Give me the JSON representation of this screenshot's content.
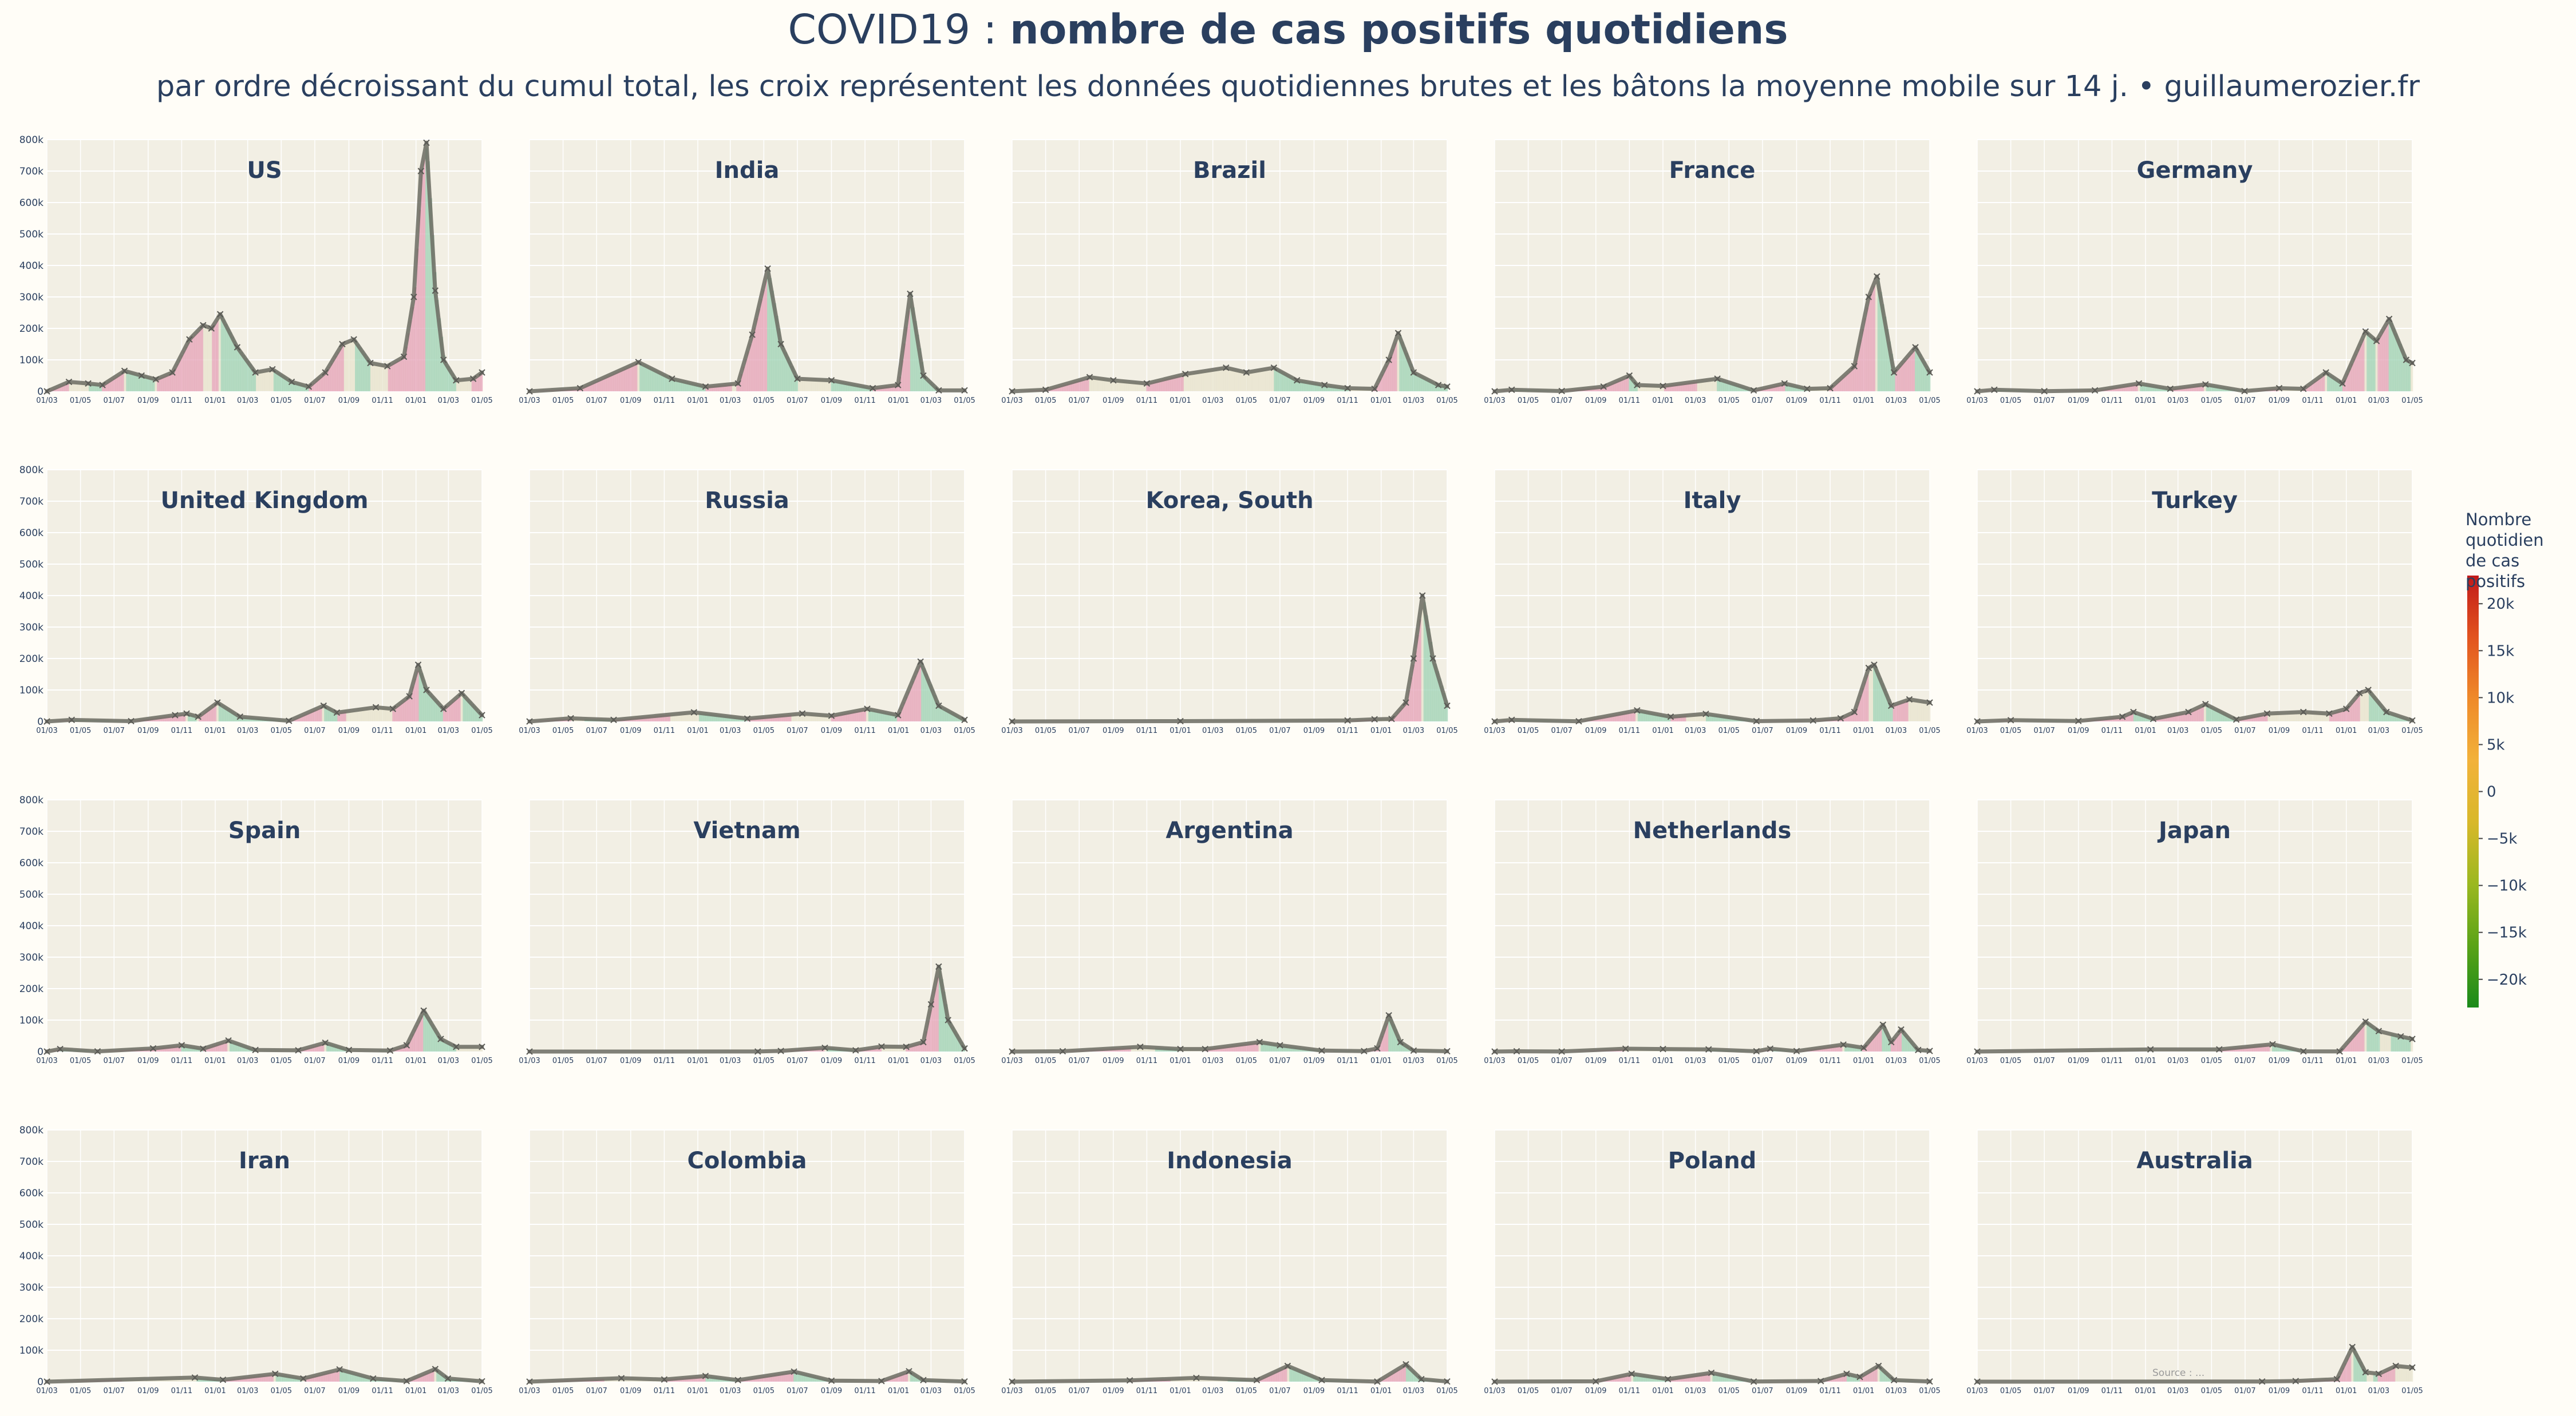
{
  "title": {
    "prefix": "COVID19 : ",
    "bold": "nombre de cas positifs quotidiens"
  },
  "subtitle": "par ordre décroissant du cumul total, les croix représentent les données quotidiennes brutes et les bâtons la moyenne mobile sur 14 j.  •  guillaumerozier.fr",
  "colorbar": {
    "title_lines": [
      "Nombre",
      "quotidien",
      "de cas positifs"
    ],
    "ticks": [
      "20k",
      "15k",
      "10k",
      "5k",
      "0",
      "−5k",
      "−10k",
      "−15k",
      "−20k"
    ],
    "tick_values": [
      20000,
      15000,
      10000,
      5000,
      0,
      -5000,
      -10000,
      -15000,
      -20000
    ],
    "range": [
      -23000,
      23000
    ],
    "colors": [
      "#1a8a1a",
      "#5aa318",
      "#9bb820",
      "#d8b82a",
      "#f2b23a",
      "#ef8a2a",
      "#e2531f",
      "#c11a1a"
    ]
  },
  "source": "Source : ...",
  "colors": {
    "panel_bg": "#f2efe4",
    "grid": "#ffffff",
    "line": "#6b6b62",
    "rise": "#e6a3b8",
    "fall": "#9fd3b5",
    "flat": "#e8e4cf",
    "marker": "#5a5a55"
  },
  "chart_data": {
    "type": "line",
    "ylim": [
      0,
      800000
    ],
    "y_ticks": [
      "0",
      "100k",
      "200k",
      "300k",
      "400k",
      "500k",
      "600k",
      "700k",
      "800k"
    ],
    "x_ticks": [
      "01/03",
      "01/05",
      "01/07",
      "01/09",
      "01/11",
      "01/01",
      "01/03",
      "01/05",
      "01/07",
      "01/09",
      "01/11",
      "01/01",
      "01/03",
      "01/05"
    ],
    "x_dates": [
      "2020-03-01",
      "2020-05-01",
      "2020-07-01",
      "2020-09-01",
      "2020-11-01",
      "2021-01-01",
      "2021-03-01",
      "2021-05-01",
      "2021-07-01",
      "2021-09-01",
      "2021-11-01",
      "2022-01-01",
      "2022-03-01",
      "2022-05-01"
    ],
    "panels": [
      {
        "country": "US",
        "dates": [
          "2020-03-01",
          "2020-04-10",
          "2020-05-15",
          "2020-06-10",
          "2020-07-20",
          "2020-08-20",
          "2020-09-15",
          "2020-10-15",
          "2020-11-15",
          "2020-12-10",
          "2020-12-25",
          "2021-01-10",
          "2021-02-10",
          "2021-03-15",
          "2021-04-15",
          "2021-05-20",
          "2021-06-20",
          "2021-07-20",
          "2021-08-20",
          "2021-09-10",
          "2021-10-10",
          "2021-11-10",
          "2021-12-10",
          "2021-12-28",
          "2022-01-10",
          "2022-01-20",
          "2022-02-05",
          "2022-02-20",
          "2022-03-15",
          "2022-04-15",
          "2022-05-01"
        ],
        "values": [
          0,
          30000,
          25000,
          20000,
          65000,
          50000,
          38000,
          60000,
          165000,
          210000,
          200000,
          245000,
          140000,
          60000,
          70000,
          30000,
          15000,
          60000,
          150000,
          165000,
          90000,
          80000,
          110000,
          300000,
          700000,
          790000,
          320000,
          100000,
          35000,
          40000,
          60000
        ]
      },
      {
        "country": "India",
        "dates": [
          "2020-03-01",
          "2020-06-01",
          "2020-09-15",
          "2020-11-15",
          "2021-01-15",
          "2021-03-15",
          "2021-04-10",
          "2021-05-08",
          "2021-06-01",
          "2021-07-01",
          "2021-09-01",
          "2021-11-15",
          "2021-12-31",
          "2022-01-22",
          "2022-02-15",
          "2022-03-15",
          "2022-05-01"
        ],
        "values": [
          0,
          10000,
          93000,
          40000,
          15000,
          25000,
          180000,
          390000,
          150000,
          40000,
          35000,
          10000,
          20000,
          310000,
          50000,
          3000,
          3000
        ]
      },
      {
        "country": "Brazil",
        "dates": [
          "2020-03-01",
          "2020-05-01",
          "2020-07-20",
          "2020-09-01",
          "2020-11-01",
          "2021-01-10",
          "2021-03-25",
          "2021-05-01",
          "2021-06-20",
          "2021-08-01",
          "2021-09-20",
          "2021-11-01",
          "2021-12-20",
          "2022-01-15",
          "2022-02-01",
          "2022-03-01",
          "2022-04-15",
          "2022-05-01"
        ],
        "values": [
          0,
          5000,
          45000,
          35000,
          25000,
          55000,
          75000,
          60000,
          75000,
          35000,
          20000,
          10000,
          8000,
          100000,
          185000,
          60000,
          20000,
          15000
        ]
      },
      {
        "country": "France",
        "dates": [
          "2020-03-01",
          "2020-04-01",
          "2020-07-01",
          "2020-09-15",
          "2020-11-01",
          "2020-11-15",
          "2021-01-01",
          "2021-04-10",
          "2021-06-15",
          "2021-08-10",
          "2021-09-20",
          "2021-11-01",
          "2021-12-15",
          "2022-01-10",
          "2022-01-25",
          "2022-02-25",
          "2022-04-05",
          "2022-05-01"
        ],
        "values": [
          0,
          5000,
          1000,
          15000,
          50000,
          20000,
          17000,
          40000,
          3000,
          25000,
          8000,
          10000,
          80000,
          300000,
          365000,
          60000,
          140000,
          60000
        ]
      },
      {
        "country": "Germany",
        "dates": [
          "2020-03-01",
          "2020-04-01",
          "2020-07-01",
          "2020-10-01",
          "2020-12-20",
          "2021-02-15",
          "2021-04-20",
          "2021-06-30",
          "2021-09-01",
          "2021-10-15",
          "2021-11-25",
          "2021-12-25",
          "2022-02-05",
          "2022-02-25",
          "2022-03-20",
          "2022-04-20",
          "2022-05-01"
        ],
        "values": [
          0,
          5000,
          500,
          3000,
          25000,
          8000,
          22000,
          800,
          10000,
          8000,
          60000,
          25000,
          190000,
          160000,
          230000,
          100000,
          90000
        ]
      },
      {
        "country": "United Kingdom",
        "dates": [
          "2020-03-01",
          "2020-04-15",
          "2020-08-01",
          "2020-10-20",
          "2020-11-10",
          "2020-12-01",
          "2021-01-05",
          "2021-02-15",
          "2021-05-15",
          "2021-07-17",
          "2021-08-10",
          "2021-10-20",
          "2021-11-20",
          "2021-12-20",
          "2022-01-05",
          "2022-01-20",
          "2022-02-20",
          "2022-03-25",
          "2022-05-01"
        ],
        "values": [
          0,
          5000,
          1000,
          20000,
          25000,
          15000,
          60000,
          15000,
          2000,
          50000,
          28000,
          45000,
          40000,
          80000,
          180000,
          100000,
          40000,
          90000,
          20000
        ]
      },
      {
        "country": "Russia",
        "dates": [
          "2020-03-01",
          "2020-05-15",
          "2020-08-01",
          "2020-12-25",
          "2021-04-01",
          "2021-07-10",
          "2021-09-01",
          "2021-11-05",
          "2021-12-31",
          "2022-02-10",
          "2022-03-15",
          "2022-05-01"
        ],
        "values": [
          0,
          10000,
          5000,
          29000,
          9000,
          25000,
          18000,
          40000,
          20000,
          190000,
          50000,
          5000
        ]
      },
      {
        "country": "Korea, South",
        "dates": [
          "2020-03-01",
          "2021-01-01",
          "2021-11-01",
          "2021-12-20",
          "2022-01-20",
          "2022-02-15",
          "2022-03-01",
          "2022-03-17",
          "2022-04-05",
          "2022-05-01"
        ],
        "values": [
          0,
          1000,
          3000,
          7000,
          8000,
          60000,
          200000,
          400000,
          200000,
          50000
        ]
      },
      {
        "country": "Italy",
        "dates": [
          "2020-03-01",
          "2020-04-01",
          "2020-08-01",
          "2020-11-15",
          "2021-01-15",
          "2021-03-20",
          "2021-06-20",
          "2021-10-01",
          "2021-11-20",
          "2021-12-15",
          "2022-01-10",
          "2022-01-20",
          "2022-02-20",
          "2022-03-25",
          "2022-05-01"
        ],
        "values": [
          0,
          5000,
          500,
          35000,
          15000,
          24000,
          1000,
          3000,
          10000,
          30000,
          170000,
          180000,
          50000,
          70000,
          60000
        ]
      },
      {
        "country": "Turkey",
        "dates": [
          "2020-03-01",
          "2020-05-01",
          "2020-09-01",
          "2020-11-20",
          "2020-12-10",
          "2021-01-15",
          "2021-03-20",
          "2021-04-20",
          "2021-06-15",
          "2021-08-10",
          "2021-10-15",
          "2021-12-01",
          "2022-01-01",
          "2022-01-25",
          "2022-02-10",
          "2022-03-15",
          "2022-05-01"
        ],
        "values": [
          0,
          4000,
          1500,
          15000,
          30000,
          8000,
          30000,
          55000,
          6000,
          25000,
          30000,
          25000,
          40000,
          90000,
          100000,
          30000,
          3000
        ]
      },
      {
        "country": "Spain",
        "dates": [
          "2020-03-01",
          "2020-03-25",
          "2020-06-01",
          "2020-09-10",
          "2020-11-01",
          "2020-12-10",
          "2021-01-25",
          "2021-03-15",
          "2021-06-01",
          "2021-07-20",
          "2021-09-01",
          "2021-11-15",
          "2021-12-15",
          "2022-01-15",
          "2022-02-15",
          "2022-03-15",
          "2022-05-01"
        ],
        "values": [
          0,
          8000,
          500,
          10000,
          20000,
          9000,
          35000,
          5000,
          4000,
          28000,
          5000,
          3000,
          20000,
          130000,
          40000,
          15000,
          15000
        ]
      },
      {
        "country": "Vietnam",
        "dates": [
          "2020-03-01",
          "2021-04-20",
          "2021-06-01",
          "2021-08-20",
          "2021-10-15",
          "2021-12-01",
          "2022-01-15",
          "2022-02-15",
          "2022-03-01",
          "2022-03-15",
          "2022-04-01",
          "2022-05-01"
        ],
        "values": [
          0,
          100,
          2000,
          12000,
          4000,
          16000,
          15000,
          30000,
          150000,
          270000,
          100000,
          10000
        ]
      },
      {
        "country": "Argentina",
        "dates": [
          "2020-03-01",
          "2020-06-01",
          "2020-10-20",
          "2021-01-01",
          "2021-02-15",
          "2021-05-25",
          "2021-07-01",
          "2021-09-15",
          "2021-12-01",
          "2021-12-25",
          "2022-01-15",
          "2022-02-05",
          "2022-03-01",
          "2022-05-01"
        ],
        "values": [
          0,
          1000,
          15000,
          8000,
          8000,
          30000,
          20000,
          3000,
          1500,
          10000,
          115000,
          30000,
          3000,
          1000
        ]
      },
      {
        "country": "Netherlands",
        "dates": [
          "2020-03-01",
          "2020-04-10",
          "2020-07-01",
          "2020-10-25",
          "2021-01-01",
          "2021-03-25",
          "2021-06-20",
          "2021-07-15",
          "2021-09-01",
          "2021-11-25",
          "2022-01-01",
          "2022-02-05",
          "2022-02-20",
          "2022-03-10",
          "2022-04-10",
          "2022-05-01"
        ],
        "values": [
          0,
          1000,
          100,
          9000,
          8000,
          7000,
          1000,
          9000,
          1500,
          22000,
          12000,
          85000,
          30000,
          70000,
          5000,
          2000
        ]
      },
      {
        "country": "Japan",
        "dates": [
          "2020-03-01",
          "2021-01-10",
          "2021-05-15",
          "2021-08-20",
          "2021-10-15",
          "2021-12-20",
          "2022-02-05",
          "2022-03-01",
          "2022-04-10",
          "2022-05-01"
        ],
        "values": [
          0,
          7000,
          7000,
          23000,
          800,
          300,
          95000,
          65000,
          48000,
          40000
        ]
      },
      {
        "country": "Iran",
        "dates": [
          "2020-03-01",
          "2020-11-25",
          "2021-01-15",
          "2021-04-20",
          "2021-06-10",
          "2021-08-15",
          "2021-10-15",
          "2021-12-15",
          "2022-02-05",
          "2022-02-28",
          "2022-05-01"
        ],
        "values": [
          0,
          13000,
          6000,
          25000,
          10000,
          39000,
          10000,
          2000,
          40000,
          10000,
          1000
        ]
      },
      {
        "country": "Colombia",
        "dates": [
          "2020-03-01",
          "2020-08-15",
          "2020-11-01",
          "2021-01-15",
          "2021-03-15",
          "2021-06-25",
          "2021-09-01",
          "2021-12-01",
          "2022-01-20",
          "2022-02-15",
          "2022-05-01"
        ],
        "values": [
          0,
          11000,
          7000,
          18000,
          5000,
          32000,
          3000,
          2000,
          33000,
          5000,
          500
        ]
      },
      {
        "country": "Indonesia",
        "dates": [
          "2020-03-01",
          "2020-10-01",
          "2021-01-30",
          "2021-05-20",
          "2021-07-15",
          "2021-09-15",
          "2021-12-25",
          "2022-02-15",
          "2022-03-15",
          "2022-05-01"
        ],
        "values": [
          0,
          4000,
          12000,
          5000,
          50000,
          5000,
          200,
          55000,
          8000,
          500
        ]
      },
      {
        "country": "Poland",
        "dates": [
          "2020-03-01",
          "2020-09-01",
          "2020-11-05",
          "2021-01-10",
          "2021-03-30",
          "2021-06-15",
          "2021-10-15",
          "2021-12-01",
          "2021-12-25",
          "2022-01-28",
          "2022-02-25",
          "2022-05-01"
        ],
        "values": [
          0,
          1000,
          25000,
          8000,
          28000,
          300,
          2000,
          25000,
          15000,
          50000,
          5000,
          500
        ]
      },
      {
        "country": "Australia",
        "dates": [
          "2020-03-01",
          "2021-08-01",
          "2021-10-01",
          "2021-12-15",
          "2022-01-12",
          "2022-02-05",
          "2022-03-01",
          "2022-04-01",
          "2022-05-01"
        ],
        "values": [
          0,
          500,
          2000,
          8000,
          110000,
          30000,
          25000,
          50000,
          45000
        ]
      }
    ]
  }
}
